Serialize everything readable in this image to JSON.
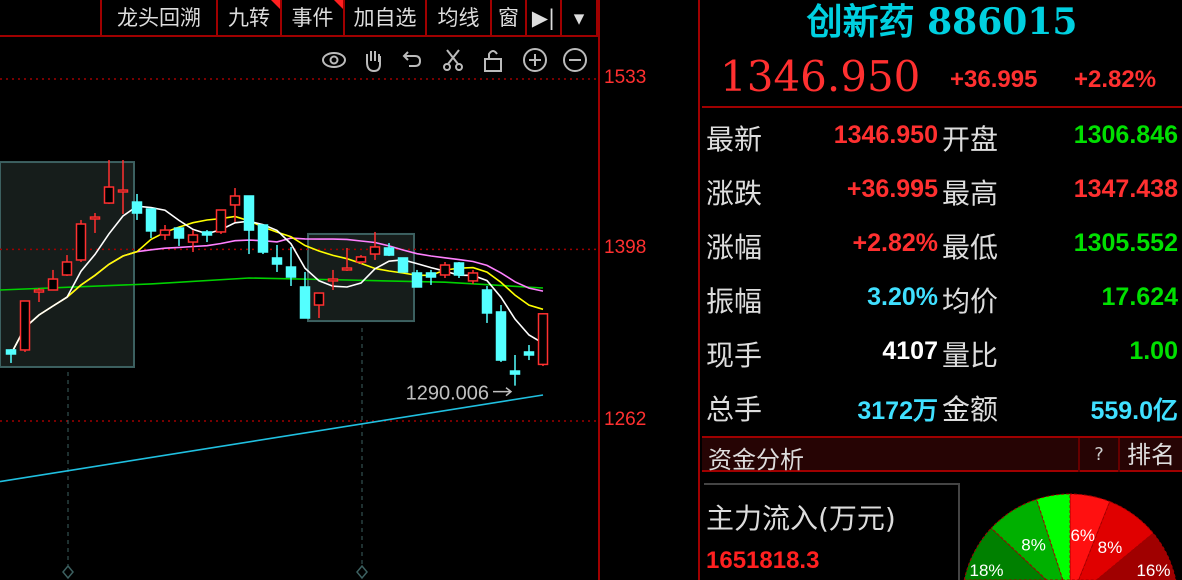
{
  "toolbar": {
    "buttons": [
      {
        "label": "龙头回溯",
        "flag": false
      },
      {
        "label": "九转",
        "flag": true
      },
      {
        "label": "事件",
        "flag": true
      },
      {
        "label": "加自选",
        "flag": false
      },
      {
        "label": "均线",
        "flag": false
      },
      {
        "label": "窗",
        "flag": false
      },
      {
        "label": "▶|",
        "flag": false
      },
      {
        "label": "▾",
        "flag": false
      }
    ],
    "icons": [
      "eye-icon",
      "hand-icon",
      "undo-icon",
      "scissors-icon",
      "lock-icon",
      "zoom-in-icon",
      "zoom-out-icon"
    ]
  },
  "colors": {
    "up": "#ff3030",
    "down": "#54ffff",
    "ma5": "#ffffff",
    "ma10": "#ffff00",
    "ma20": "#ff80ff",
    "ma_green": "#00d000",
    "ma_cyan": "#20c0e0",
    "grid": "#a00000"
  },
  "chart_data": {
    "type": "candlestick",
    "yticks": [
      1533,
      1398,
      1262
    ],
    "grid": "dotted-horizontal",
    "candles": [
      [
        1318.3,
        1315.1,
        1319.0,
        1308.0
      ],
      [
        1318.3,
        1357.1,
        1357.1,
        1316.7
      ],
      [
        1364.2,
        1365.8,
        1367.4,
        1356.3
      ],
      [
        1365.8,
        1374.5,
        1381.7,
        1365.8
      ],
      [
        1377.7,
        1388.0,
        1393.5,
        1376.9
      ],
      [
        1389.6,
        1418.1,
        1421.3,
        1388.0
      ],
      [
        1422.1,
        1423.6,
        1426.8,
        1411.0
      ],
      [
        1434.7,
        1447.4,
        1468.8,
        1434.0
      ],
      [
        1443.5,
        1445.0,
        1468.8,
        1426.0
      ],
      [
        1435.5,
        1426.8,
        1441.9,
        1421.3
      ],
      [
        1430.0,
        1412.6,
        1430.0,
        1407.0
      ],
      [
        1409.4,
        1413.3,
        1417.3,
        1405.4
      ],
      [
        1414.9,
        1407.0,
        1414.9,
        1400.7
      ],
      [
        1403.8,
        1409.4,
        1413.3,
        1395.9
      ],
      [
        1411.8,
        1409.4,
        1413.3,
        1403.8
      ],
      [
        1411.8,
        1429.2,
        1429.2,
        1410.2
      ],
      [
        1433.2,
        1440.3,
        1446.6,
        1419.7
      ],
      [
        1440.3,
        1413.3,
        1440.3,
        1394.3
      ],
      [
        1417.3,
        1395.9,
        1417.3,
        1394.3
      ],
      [
        1391.2,
        1386.4,
        1401.5,
        1380.1
      ],
      [
        1384.0,
        1376.1,
        1399.9,
        1369.0
      ],
      [
        1368.2,
        1343.6,
        1380.1,
        1343.6
      ],
      [
        1353.9,
        1363.4,
        1363.4,
        1343.6
      ],
      [
        1373.0,
        1374.5,
        1381.7,
        1365.8
      ],
      [
        1381.7,
        1383.2,
        1399.1,
        1380.9
      ],
      [
        1388.0,
        1392.0,
        1393.5,
        1386.4
      ],
      [
        1394.3,
        1399.9,
        1411.8,
        1389.6
      ],
      [
        1399.1,
        1393.5,
        1403.0,
        1392.7
      ],
      [
        1391.2,
        1380.1,
        1391.2,
        1380.1
      ],
      [
        1379.3,
        1368.2,
        1381.7,
        1368.2
      ],
      [
        1379.3,
        1376.1,
        1381.7,
        1369.8
      ],
      [
        1377.7,
        1385.6,
        1388.0,
        1375.3
      ],
      [
        1387.2,
        1377.7,
        1388.0,
        1375.3
      ],
      [
        1373.0,
        1379.3,
        1381.7,
        1370.6
      ],
      [
        1365.8,
        1347.6,
        1369.0,
        1339.7
      ],
      [
        1348.4,
        1310.3,
        1353.9,
        1308.8
      ],
      [
        1301.6,
        1299.2,
        1314.3,
        1290.006
      ],
      [
        1316.7,
        1314.3,
        1322.2,
        1310.3
      ],
      [
        1306.846,
        1346.95,
        1347.438,
        1305.552
      ]
    ],
    "ma_green": [
      [
        0,
        1365.8
      ],
      [
        10,
        1370.6
      ],
      [
        17,
        1375.3
      ],
      [
        24,
        1373.7
      ],
      [
        31,
        1372.0
      ],
      [
        38,
        1367.4
      ]
    ],
    "ma_cyan": [
      [
        0,
        1214.0
      ],
      [
        38,
        1282.6
      ]
    ],
    "boxes": [
      {
        "from": 0,
        "to": 8,
        "high": 1467.2,
        "low": 1304.8
      },
      {
        "from": 22,
        "to": 28,
        "high": 1410.2,
        "low": 1341.2
      }
    ],
    "markers": [
      4,
      25
    ],
    "annotation": {
      "label": "1290.006",
      "index": 36,
      "value": 1290.006
    }
  },
  "quote": {
    "name": "创新药",
    "code": "886015",
    "price": "1346.950",
    "change": "+36.995",
    "change_pct": "+2.82%",
    "rows": [
      {
        "l1": "最新",
        "v1": "1346.950",
        "c1": "#ff3030",
        "l2": "开盘",
        "v2": "1306.846",
        "c2": "#00e000"
      },
      {
        "l1": "涨跌",
        "v1": "+36.995",
        "c1": "#ff3030",
        "l2": "最高",
        "v2": "1347.438",
        "c2": "#ff3030"
      },
      {
        "l1": "涨幅",
        "v1": "+2.82%",
        "c1": "#ff3030",
        "l2": "最低",
        "v2": "1305.552",
        "c2": "#00e000"
      },
      {
        "l1": "振幅",
        "v1": "3.20%",
        "c1": "#40e0ff",
        "l2": "均价",
        "v2": "17.624",
        "c2": "#00e000"
      },
      {
        "l1": "现手",
        "v1": "4107",
        "c1": "#ffffff",
        "l2": "量比",
        "v2": "1.00",
        "c2": "#00e000"
      },
      {
        "l1": "总手",
        "v1": "3172万",
        "c1": "#40e0ff",
        "l2": "金额",
        "v2": "559.0亿",
        "c2": "#40e0ff"
      }
    ]
  },
  "funds": {
    "title": "资金分析",
    "help": "?",
    "rank": "排名",
    "inflow_label": "主力流入(万元)",
    "inflow_value": "1651818.3",
    "pie": [
      {
        "label": "6%",
        "value": 6,
        "color": "#ff1010"
      },
      {
        "label": "8%",
        "value": 8,
        "color": "#e00000"
      },
      {
        "label": "16%",
        "value": 16,
        "color": "#a00000"
      },
      {
        "label": "",
        "value": 19,
        "color": "#800000"
      },
      {
        "label": "",
        "value": 20,
        "color": "#005000"
      },
      {
        "label": "18%",
        "value": 18,
        "color": "#008000"
      },
      {
        "label": "8%",
        "value": 8,
        "color": "#00b000"
      },
      {
        "label": "",
        "value": 5,
        "color": "#00ff00"
      }
    ]
  }
}
